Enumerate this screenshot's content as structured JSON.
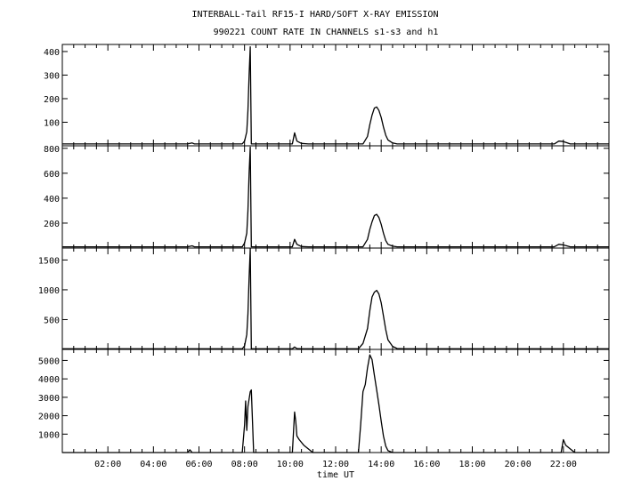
{
  "chart_data": {
    "type": "line",
    "title": "INTERBALL-Tail RF15-I HARD/SOFT X-RAY EMISSION",
    "subtitle": "990221  COUNT RATE IN CHANNELS s1-s3 and h1",
    "xlabel": "time UT",
    "xlim": [
      0,
      24
    ],
    "x_ticks": [
      {
        "x": 2,
        "label": "02:00"
      },
      {
        "x": 4,
        "label": "04:00"
      },
      {
        "x": 6,
        "label": "06:00"
      },
      {
        "x": 8,
        "label": "08:00"
      },
      {
        "x": 10,
        "label": "10:00"
      },
      {
        "x": 12,
        "label": "12:00"
      },
      {
        "x": 14,
        "label": "14:00"
      },
      {
        "x": 16,
        "label": "16:00"
      },
      {
        "x": 18,
        "label": "18:00"
      },
      {
        "x": 20,
        "label": "20:00"
      },
      {
        "x": 22,
        "label": "22:00"
      }
    ],
    "panels": [
      {
        "ylim": [
          0,
          430
        ],
        "y_ticks": [
          100,
          200,
          300,
          400
        ],
        "x": [
          0,
          5.5,
          5.7,
          5.8,
          7.9,
          8.0,
          8.1,
          8.15,
          8.2,
          8.25,
          8.3,
          8.4,
          10.1,
          10.2,
          10.3,
          10.5,
          10.8,
          13.2,
          13.4,
          13.5,
          13.6,
          13.7,
          13.8,
          13.9,
          14.0,
          14.1,
          14.2,
          14.3,
          14.5,
          14.7,
          15.0,
          19.5,
          21.6,
          21.8,
          22.0,
          22.3,
          24
        ],
        "y": [
          8,
          8,
          12,
          8,
          8,
          20,
          60,
          150,
          300,
          420,
          8,
          8,
          8,
          55,
          20,
          10,
          8,
          8,
          40,
          90,
          130,
          160,
          165,
          150,
          120,
          80,
          45,
          25,
          12,
          8,
          8,
          8,
          8,
          20,
          18,
          8,
          8
        ]
      },
      {
        "ylim": [
          0,
          820
        ],
        "y_ticks": [
          200,
          400,
          600,
          800
        ],
        "x": [
          0,
          5.5,
          5.7,
          5.8,
          7.9,
          8.0,
          8.1,
          8.15,
          8.2,
          8.25,
          8.3,
          8.4,
          10.1,
          10.2,
          10.3,
          10.5,
          10.8,
          13.2,
          13.4,
          13.5,
          13.6,
          13.7,
          13.8,
          13.9,
          14.0,
          14.1,
          14.2,
          14.3,
          14.5,
          14.7,
          15.0,
          19.5,
          21.6,
          21.8,
          22.0,
          22.3,
          24
        ],
        "y": [
          10,
          10,
          18,
          10,
          10,
          40,
          120,
          300,
          600,
          810,
          10,
          10,
          10,
          70,
          30,
          12,
          10,
          10,
          70,
          150,
          210,
          260,
          270,
          245,
          190,
          120,
          60,
          30,
          15,
          10,
          10,
          10,
          10,
          30,
          25,
          10,
          10
        ]
      },
      {
        "ylim": [
          0,
          1700
        ],
        "y_ticks": [
          500,
          1000,
          1500
        ],
        "x": [
          0,
          7.9,
          8.0,
          8.1,
          8.15,
          8.2,
          8.25,
          8.3,
          8.4,
          10.1,
          10.2,
          10.3,
          10.5,
          13.0,
          13.2,
          13.4,
          13.5,
          13.6,
          13.7,
          13.8,
          13.9,
          14.0,
          14.1,
          14.2,
          14.3,
          14.5,
          14.7,
          15.0,
          22.0,
          24
        ],
        "y": [
          10,
          10,
          60,
          250,
          600,
          1200,
          1690,
          10,
          10,
          10,
          40,
          15,
          10,
          10,
          100,
          350,
          650,
          880,
          960,
          990,
          930,
          780,
          560,
          330,
          160,
          50,
          15,
          10,
          10,
          10
        ]
      },
      {
        "ylim": [
          0,
          5600
        ],
        "y_ticks": [
          1000,
          2000,
          3000,
          4000,
          5000
        ],
        "x": [
          0,
          5.5,
          5.6,
          5.7,
          7.9,
          8.0,
          8.05,
          8.1,
          8.15,
          8.2,
          8.25,
          8.3,
          8.4,
          10.1,
          10.2,
          10.25,
          10.3,
          10.4,
          10.6,
          10.8,
          11.0,
          13.0,
          13.1,
          13.2,
          13.3,
          13.4,
          13.5,
          13.6,
          13.7,
          13.8,
          13.9,
          14.0,
          14.1,
          14.2,
          14.3,
          14.5,
          14.7,
          21.9,
          22.0,
          22.1,
          22.3,
          22.5,
          24
        ],
        "y": [
          0,
          0,
          150,
          0,
          0,
          1500,
          2800,
          1200,
          2500,
          2900,
          3300,
          3400,
          0,
          0,
          2200,
          1700,
          900,
          700,
          400,
          200,
          0,
          0,
          1500,
          3300,
          3700,
          4600,
          5300,
          5050,
          4200,
          3400,
          2600,
          1700,
          900,
          350,
          100,
          0,
          0,
          0,
          700,
          400,
          200,
          0,
          0
        ]
      }
    ]
  }
}
